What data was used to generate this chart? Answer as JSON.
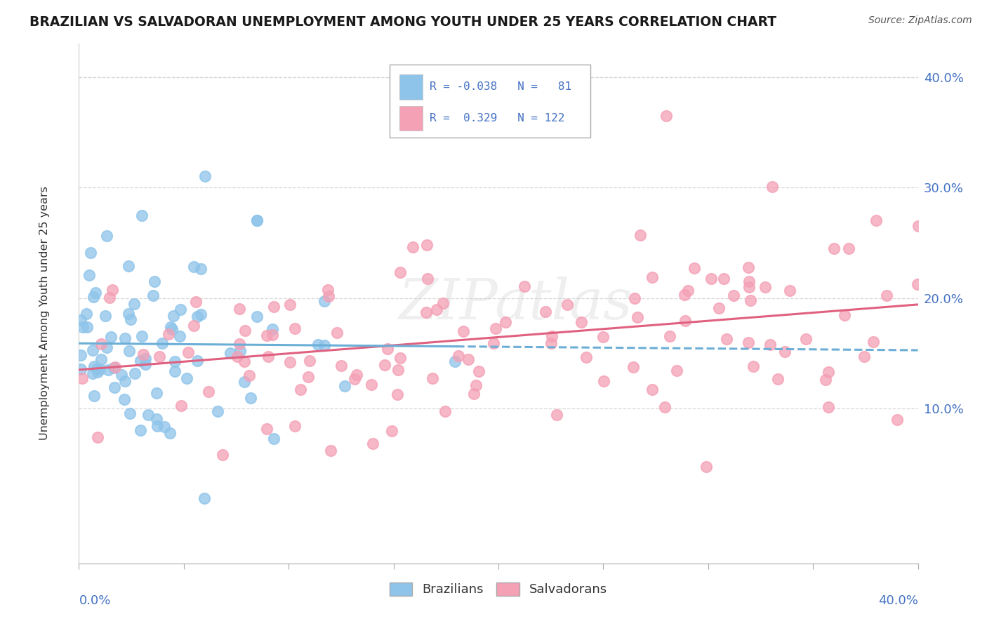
{
  "title": "BRAZILIAN VS SALVADORAN UNEMPLOYMENT AMONG YOUTH UNDER 25 YEARS CORRELATION CHART",
  "source": "Source: ZipAtlas.com",
  "ylabel": "Unemployment Among Youth under 25 years",
  "color_brazilian": "#8EC4EA",
  "color_salvadoran": "#F4A0B5",
  "color_blue_text": "#4472C4",
  "color_line_brazilian": "#6BAED6",
  "color_line_salvadoran": "#E06080",
  "background_color": "#FFFFFF",
  "grid_color": "#D0D0D0",
  "legend_r_brazilian": "-0.038",
  "legend_n_brazilian": "81",
  "legend_r_salvadoran": "0.329",
  "legend_n_salvadoran": "122"
}
